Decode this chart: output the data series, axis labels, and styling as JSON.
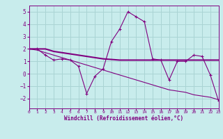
{
  "xlabel": "Windchill (Refroidissement éolien,°C)",
  "background_color": "#c8ecec",
  "grid_color": "#aad4d4",
  "line_color": "#800080",
  "text_color": "#800080",
  "x_hours": [
    0,
    1,
    2,
    3,
    4,
    5,
    6,
    7,
    8,
    9,
    10,
    11,
    12,
    13,
    14,
    15,
    16,
    17,
    18,
    19,
    20,
    21,
    22,
    23
  ],
  "line1_y": [
    2.0,
    2.0,
    1.5,
    1.1,
    1.2,
    1.1,
    0.6,
    -1.6,
    -0.2,
    0.4,
    2.6,
    3.6,
    5.0,
    4.6,
    4.2,
    1.2,
    1.1,
    -0.5,
    1.0,
    1.0,
    1.5,
    1.4,
    -0.1,
    -2.2
  ],
  "line2_y": [
    2.0,
    2.0,
    2.0,
    1.8,
    1.7,
    1.6,
    1.5,
    1.4,
    1.3,
    1.2,
    1.15,
    1.1,
    1.1,
    1.1,
    1.1,
    1.1,
    1.1,
    1.1,
    1.1,
    1.1,
    1.1,
    1.1,
    1.1,
    1.1
  ],
  "line3_y": [
    2.0,
    1.9,
    1.7,
    1.5,
    1.3,
    1.1,
    0.9,
    0.7,
    0.5,
    0.3,
    0.1,
    -0.1,
    -0.3,
    -0.5,
    -0.7,
    -0.9,
    -1.1,
    -1.3,
    -1.4,
    -1.5,
    -1.7,
    -1.8,
    -1.9,
    -2.1
  ],
  "ylim": [
    -2.8,
    5.5
  ],
  "yticks": [
    -2,
    -1,
    0,
    1,
    2,
    3,
    4,
    5
  ],
  "xlim": [
    0,
    23
  ]
}
